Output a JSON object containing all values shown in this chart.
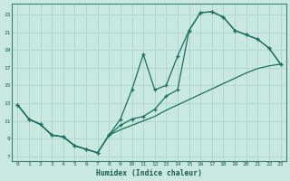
{
  "xlabel": "Humidex (Indice chaleur)",
  "bg_color": "#c8e8e0",
  "grid_color": "#b0d8d0",
  "line_color": "#1a7060",
  "xlim": [
    -0.5,
    23.5
  ],
  "ylim": [
    6.5,
    24.2
  ],
  "xticks": [
    0,
    1,
    2,
    3,
    4,
    5,
    6,
    7,
    8,
    9,
    10,
    11,
    12,
    13,
    14,
    15,
    16,
    17,
    18,
    19,
    20,
    21,
    22,
    23
  ],
  "yticks": [
    7,
    9,
    11,
    13,
    15,
    17,
    19,
    21,
    23
  ],
  "curve1_x": [
    0,
    1,
    2,
    3,
    4,
    5,
    6,
    7,
    8,
    9,
    10,
    11,
    12,
    13,
    14,
    15,
    16,
    17,
    18,
    19,
    20,
    21,
    22,
    23
  ],
  "curve1_y": [
    12.8,
    11.2,
    10.6,
    9.4,
    9.2,
    8.2,
    7.8,
    7.4,
    9.4,
    11.2,
    14.5,
    18.5,
    14.5,
    15.0,
    18.3,
    21.2,
    23.2,
    23.3,
    22.7,
    21.2,
    20.7,
    20.2,
    19.2,
    17.4
  ],
  "curve2_x": [
    0,
    1,
    2,
    3,
    4,
    5,
    6,
    7,
    8,
    9,
    10,
    11,
    12,
    13,
    14,
    15,
    16,
    17,
    18,
    19,
    20,
    21,
    22,
    23
  ],
  "curve2_y": [
    12.8,
    11.2,
    10.6,
    9.4,
    9.2,
    8.2,
    7.8,
    7.4,
    9.4,
    10.5,
    11.2,
    11.5,
    12.3,
    13.8,
    14.5,
    21.2,
    23.2,
    23.3,
    22.7,
    21.2,
    20.7,
    20.2,
    19.2,
    17.4
  ],
  "curve3_x": [
    0,
    1,
    2,
    3,
    4,
    5,
    6,
    7,
    8,
    9,
    10,
    11,
    12,
    13,
    14,
    15,
    16,
    17,
    18,
    19,
    20,
    21,
    22,
    23
  ],
  "curve3_y": [
    12.8,
    11.2,
    10.6,
    9.4,
    9.2,
    8.2,
    7.8,
    7.4,
    9.4,
    10.0,
    10.5,
    11.0,
    11.5,
    12.2,
    12.8,
    13.4,
    14.0,
    14.6,
    15.2,
    15.8,
    16.4,
    16.9,
    17.2,
    17.4
  ]
}
